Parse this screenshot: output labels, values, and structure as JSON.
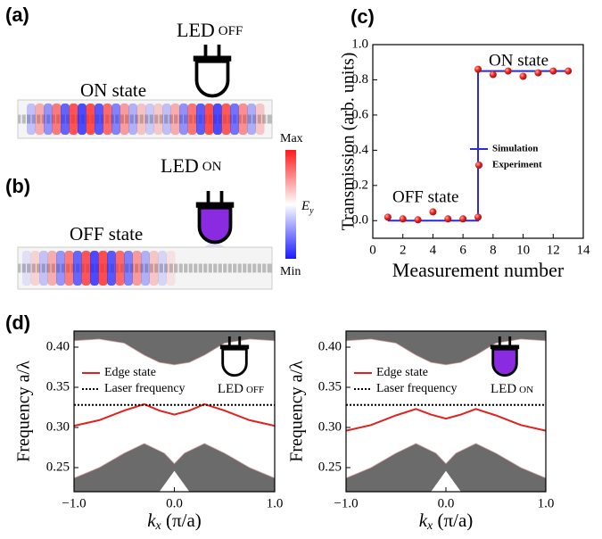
{
  "panels": {
    "a": {
      "label": "(a)",
      "led": "LED",
      "led_state": "OFF",
      "state": "ON state"
    },
    "b": {
      "label": "(b)",
      "led": "LED",
      "led_state": "ON",
      "state": "OFF state"
    },
    "colorbar": {
      "max": "Max",
      "min": "Min",
      "symbol": "E",
      "subscript": "y"
    }
  },
  "chart_data": [
    {
      "type": "line",
      "panel_label": "(c)",
      "xlabel": [
        "Measurement number"
      ],
      "ylabel": "Transmission (arb. units)",
      "xlim": [
        0,
        14
      ],
      "ylim": [
        -0.1,
        1.0
      ],
      "xticks": [
        0,
        2,
        4,
        6,
        8,
        10,
        12,
        14
      ],
      "yticks": [
        {
          "value": 0,
          "label": "0.0"
        },
        {
          "value": 0.2,
          "label": "0.2"
        },
        {
          "value": 0.4,
          "label": "0.4"
        },
        {
          "value": 0.6,
          "label": "0.6"
        },
        {
          "value": 0.8,
          "label": "0.8"
        },
        {
          "value": 1,
          "label": "1.0"
        }
      ],
      "legend": "right",
      "annotations": [
        "ON state",
        "OFF state"
      ],
      "series": [
        {
          "name": "Simulation",
          "color": "#2b2bd6",
          "style": "solid",
          "x": [
            1,
            7,
            7,
            13
          ],
          "values": [
            0,
            0,
            0.85,
            0.85
          ]
        },
        {
          "name": "Experiment",
          "color": "#e8231f",
          "style": "markers",
          "x": [
            1,
            2,
            3,
            4,
            5,
            6,
            7,
            7,
            8,
            9,
            10,
            11,
            12,
            13
          ],
          "values": [
            0.02,
            0.01,
            0.005,
            0.05,
            0.01,
            0.01,
            0.02,
            0.86,
            0.83,
            0.85,
            0.82,
            0.84,
            0.85,
            0.85
          ]
        }
      ]
    },
    {
      "type": "line",
      "panel_label": "(d)",
      "xlabel": [
        "k",
        "x",
        " (π/a)"
      ],
      "ylabel": "Frequency a/λ",
      "xlim": [
        -1,
        1
      ],
      "ylim": [
        0.22,
        0.42
      ],
      "xticks": [
        {
          "value": -1,
          "label": "−1.0"
        },
        {
          "value": 0,
          "label": "0.0"
        },
        {
          "value": 1,
          "label": "1.0"
        }
      ],
      "yticks": [
        {
          "value": 0.25,
          "label": "0.25"
        },
        {
          "value": 0.3,
          "label": "0.30"
        },
        {
          "value": 0.35,
          "label": "0.35"
        },
        {
          "value": 0.4,
          "label": "0.40"
        }
      ],
      "legend": "upper left",
      "led": "LED",
      "led_state": "OFF",
      "bands": [
        {
          "color": "#6b6b6b",
          "fill": "above",
          "x": [
            -1,
            -0.75,
            -0.5,
            -0.3,
            -0.15,
            0,
            0.15,
            0.3,
            0.5,
            0.75,
            1
          ],
          "values": [
            0.408,
            0.41,
            0.405,
            0.39,
            0.381,
            0.378,
            0.381,
            0.39,
            0.405,
            0.41,
            0.408
          ]
        },
        {
          "color": "#6b6b6b",
          "fill": "below",
          "x": [
            -1,
            -0.75,
            -0.5,
            -0.3,
            -0.1,
            0,
            0.1,
            0.3,
            0.5,
            0.75,
            1
          ],
          "values": [
            0.237,
            0.25,
            0.268,
            0.28,
            0.268,
            0.255,
            0.268,
            0.28,
            0.268,
            0.25,
            0.237
          ]
        },
        {
          "color": "#ffffff",
          "fill": "below",
          "x": [
            -0.15,
            0,
            0.15
          ],
          "values": [
            0.22,
            0.246,
            0.22
          ]
        }
      ],
      "series": [
        {
          "name": "Edge state",
          "color": "#e3201b",
          "style": "solid",
          "x": [
            -1,
            -0.75,
            -0.5,
            -0.3,
            -0.15,
            0,
            0.15,
            0.3,
            0.5,
            0.75,
            1
          ],
          "values": [
            0.302,
            0.309,
            0.321,
            0.329,
            0.321,
            0.316,
            0.321,
            0.329,
            0.321,
            0.309,
            0.302
          ]
        },
        {
          "name": "Laser frequency",
          "color": "#000000",
          "style": "dotted",
          "x": [
            -1,
            1
          ],
          "values": [
            0.328,
            0.328
          ]
        }
      ]
    },
    {
      "type": "line",
      "xlabel": [
        "k",
        "x",
        " (π/a)"
      ],
      "ylabel": "Frequency a/λ",
      "xlim": [
        -1,
        1
      ],
      "ylim": [
        0.22,
        0.42
      ],
      "xticks": [
        {
          "value": -1,
          "label": "−1.0"
        },
        {
          "value": 0,
          "label": "0.0"
        },
        {
          "value": 1,
          "label": "1.0"
        }
      ],
      "yticks": [
        {
          "value": 0.25,
          "label": "0.25"
        },
        {
          "value": 0.3,
          "label": "0.30"
        },
        {
          "value": 0.35,
          "label": "0.35"
        },
        {
          "value": 0.4,
          "label": "0.40"
        }
      ],
      "legend": "upper left",
      "led": "LED",
      "led_state": "ON",
      "bands": [
        {
          "color": "#6b6b6b",
          "fill": "above",
          "x": [
            -1,
            -0.75,
            -0.5,
            -0.3,
            -0.15,
            0,
            0.15,
            0.3,
            0.5,
            0.75,
            1
          ],
          "values": [
            0.408,
            0.41,
            0.405,
            0.39,
            0.381,
            0.378,
            0.381,
            0.39,
            0.405,
            0.41,
            0.408
          ]
        },
        {
          "color": "#6b6b6b",
          "fill": "below",
          "x": [
            -1,
            -0.75,
            -0.5,
            -0.3,
            -0.1,
            0,
            0.1,
            0.3,
            0.5,
            0.75,
            1
          ],
          "values": [
            0.237,
            0.25,
            0.268,
            0.28,
            0.268,
            0.255,
            0.268,
            0.28,
            0.268,
            0.25,
            0.237
          ]
        },
        {
          "color": "#ffffff",
          "fill": "below",
          "x": [
            -0.15,
            0,
            0.15
          ],
          "values": [
            0.22,
            0.246,
            0.22
          ]
        }
      ],
      "series": [
        {
          "name": "Edge state",
          "color": "#e3201b",
          "style": "solid",
          "x": [
            -1,
            -0.75,
            -0.5,
            -0.3,
            -0.15,
            0,
            0.15,
            0.3,
            0.5,
            0.75,
            1
          ],
          "values": [
            0.296,
            0.303,
            0.315,
            0.323,
            0.316,
            0.311,
            0.316,
            0.323,
            0.315,
            0.303,
            0.296
          ]
        },
        {
          "name": "Laser frequency",
          "color": "#000000",
          "style": "dotted",
          "x": [
            -1,
            1
          ],
          "values": [
            0.328,
            0.328
          ]
        }
      ]
    }
  ]
}
